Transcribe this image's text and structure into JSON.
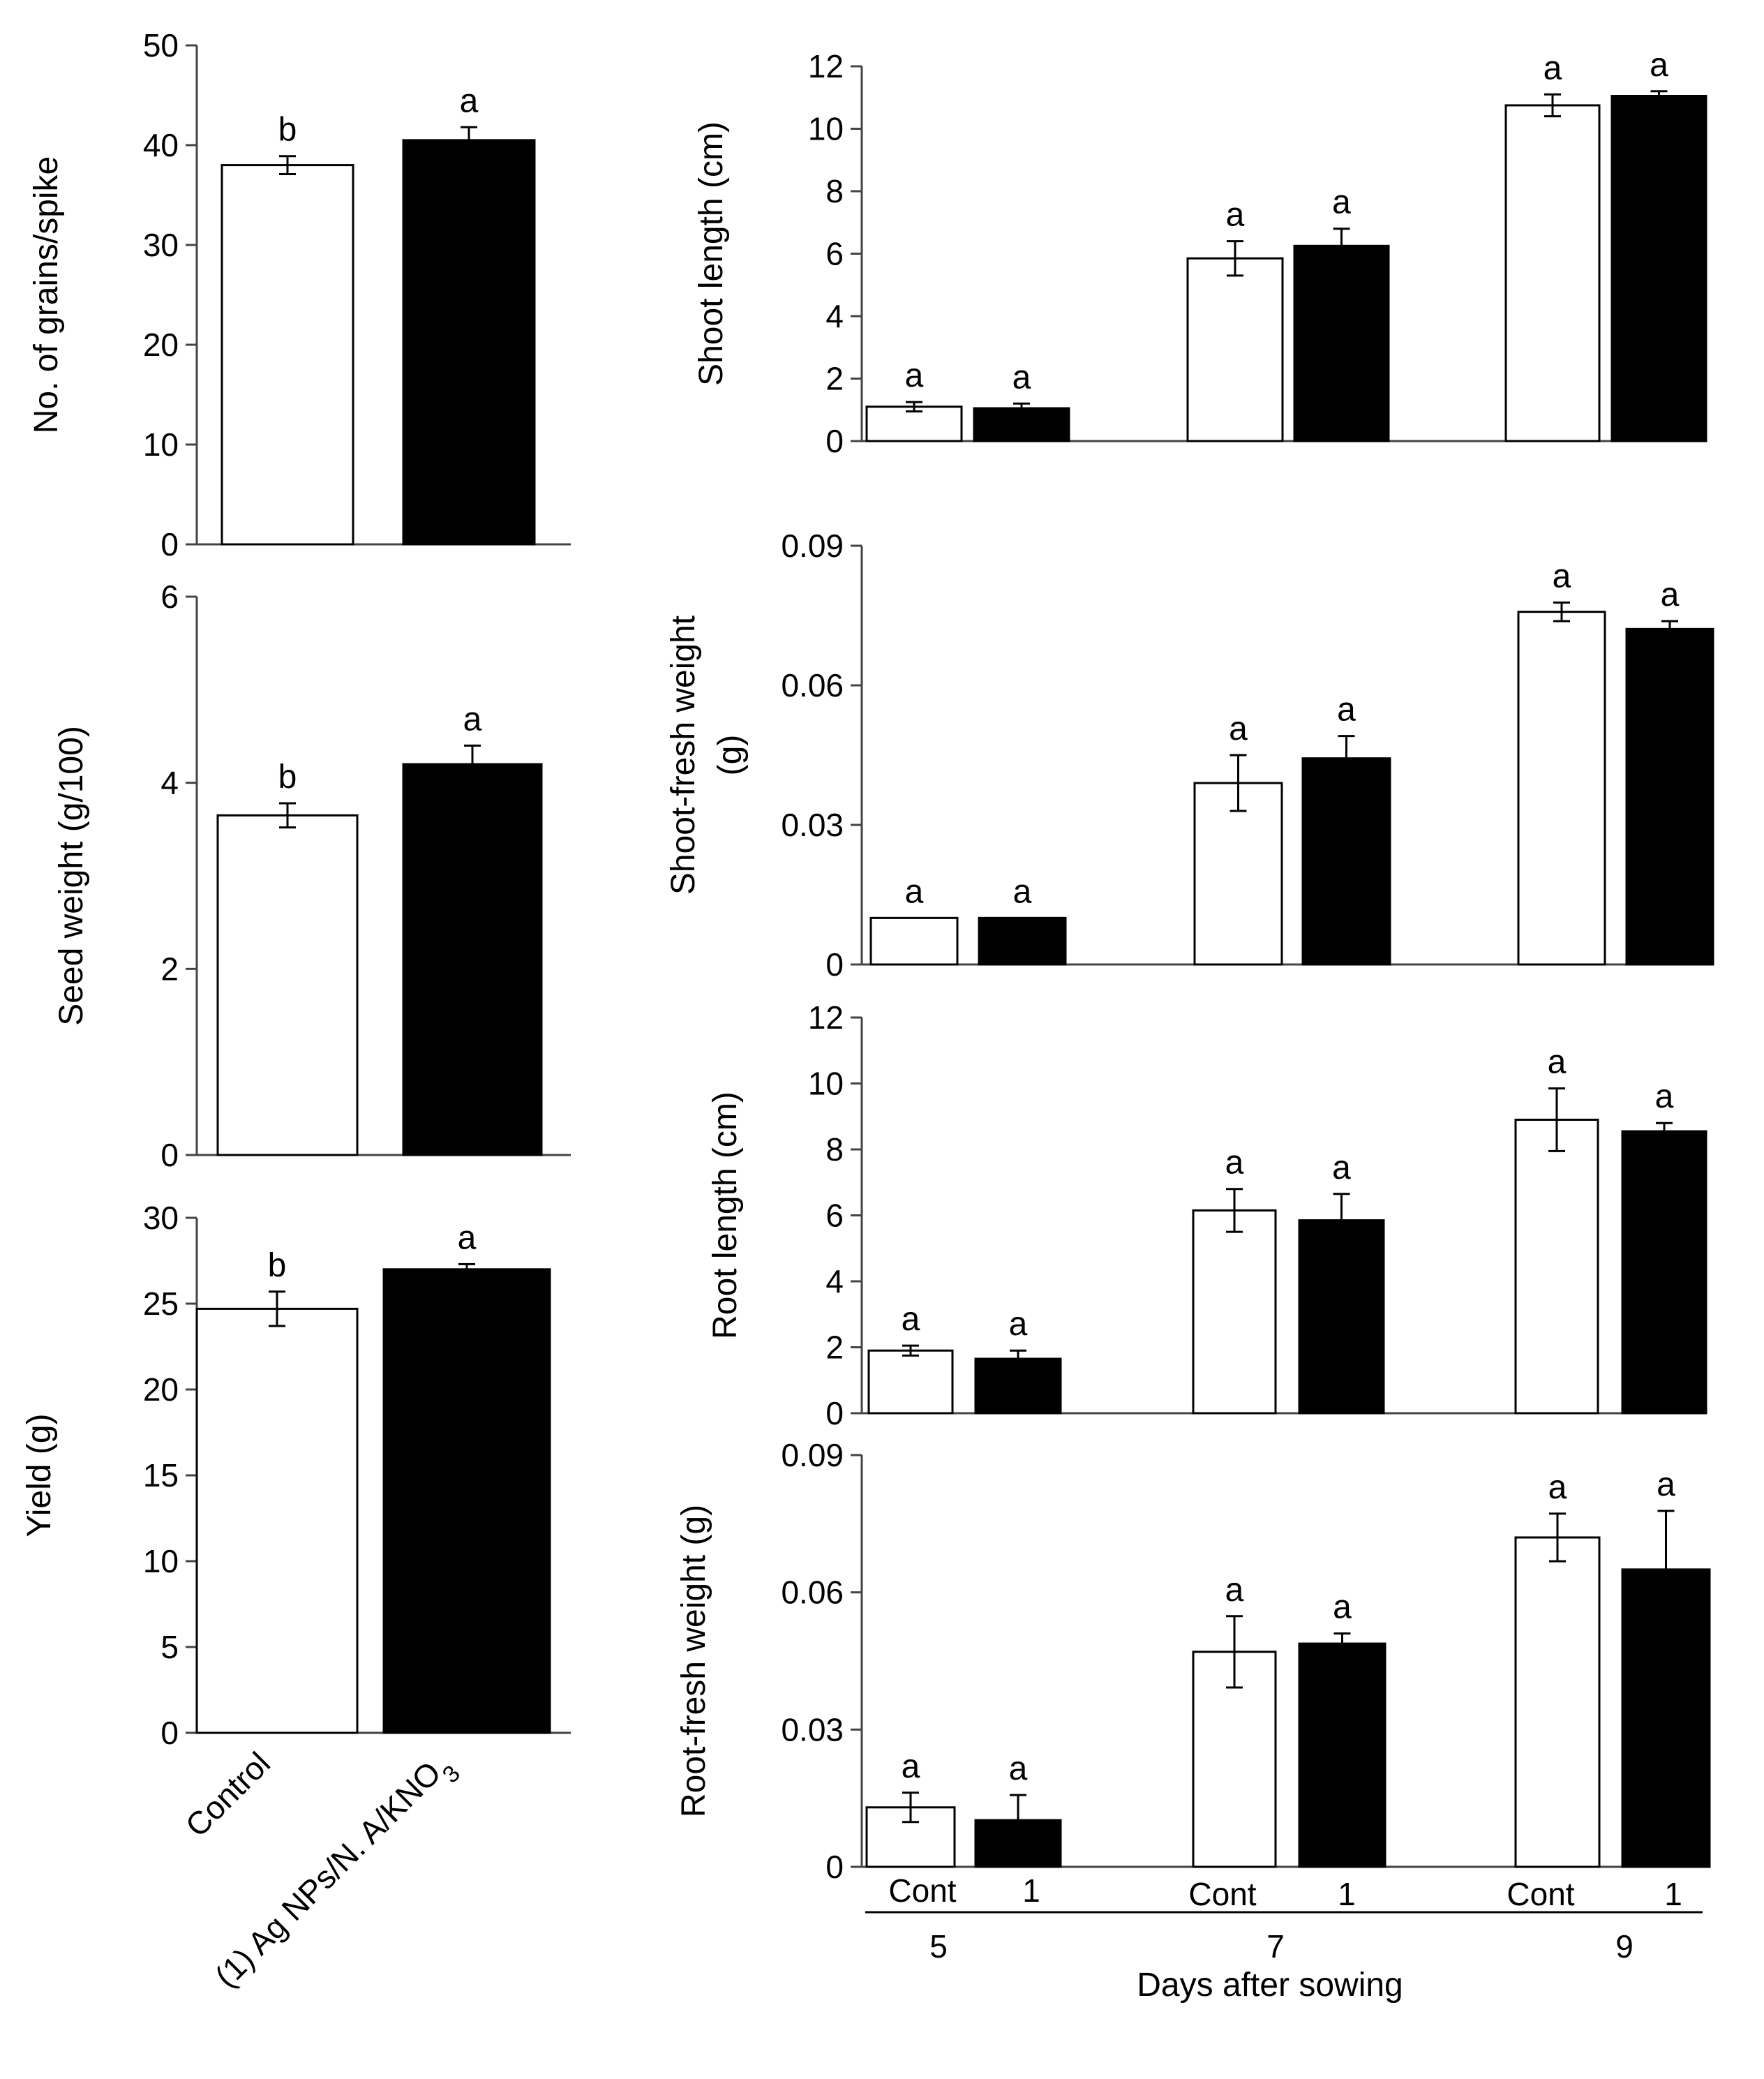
{
  "colors": {
    "control": "#ffffff",
    "treatment": "#000000",
    "outline": "#000000"
  },
  "left_categories": {
    "control": "Control",
    "treatment_prefix": "(1) Ag NPs/N. A/KNO",
    "treatment_subscript": "3"
  },
  "bottom_axis": {
    "group_labels": [
      "Cont",
      "1"
    ],
    "day_groups": [
      "5",
      "7",
      "9"
    ],
    "xlabel": "Days after sowing"
  },
  "chart_data": [
    {
      "id": "grains",
      "type": "bar",
      "ylabel": "No. of grains/spike",
      "ylim": [
        0,
        50
      ],
      "yticks": [
        0,
        10,
        20,
        30,
        40,
        50
      ],
      "ytick_labels": [
        "0",
        "10",
        "20",
        "30",
        "40",
        "50"
      ],
      "categories": [
        "Control",
        "(1) Ag NPs/N. A/KNO3"
      ],
      "values": [
        38,
        40.5
      ],
      "errors": [
        0.9,
        1.3
      ],
      "letters": [
        "b",
        "a"
      ]
    },
    {
      "id": "seed",
      "type": "bar",
      "ylabel": "Seed weight (g/100)",
      "ylim": [
        0,
        6
      ],
      "yticks": [
        0,
        2,
        4,
        6
      ],
      "ytick_labels": [
        "0",
        "2",
        "4",
        "6"
      ],
      "categories": [
        "Control",
        "(1) Ag NPs/N. A/KNO3"
      ],
      "values": [
        3.65,
        4.2
      ],
      "errors": [
        0.13,
        0.2
      ],
      "letters": [
        "b",
        "a"
      ]
    },
    {
      "id": "yield",
      "type": "bar",
      "ylabel": "Yield (g)",
      "ylim": [
        0,
        30
      ],
      "yticks": [
        0,
        5,
        10,
        15,
        20,
        25,
        30
      ],
      "ytick_labels": [
        "0",
        "5",
        "10",
        "15",
        "20",
        "25",
        "30"
      ],
      "categories": [
        "Control",
        "(1) Ag NPs/N. A/KNO3"
      ],
      "values": [
        24.7,
        27
      ],
      "errors": [
        1.0,
        0.3
      ],
      "letters": [
        "b",
        "a"
      ]
    },
    {
      "id": "shoot_length",
      "type": "bar",
      "ylabel": "Shoot length (cm)",
      "ylim": [
        0,
        12
      ],
      "yticks": [
        0,
        2,
        4,
        6,
        8,
        10,
        12
      ],
      "ytick_labels": [
        "0",
        "2",
        "4",
        "6",
        "8",
        "10",
        "12"
      ],
      "categories": [
        "5",
        "7",
        "9"
      ],
      "series": [
        {
          "name": "Cont",
          "values": [
            1.1,
            5.85,
            10.75
          ],
          "errors": [
            0.15,
            0.55,
            0.35
          ],
          "letters": [
            "a",
            "a",
            "a"
          ]
        },
        {
          "name": "1",
          "values": [
            1.05,
            6.25,
            11.05
          ],
          "errors": [
            0.15,
            0.55,
            0.15
          ],
          "letters": [
            "a",
            "a",
            "a"
          ]
        }
      ]
    },
    {
      "id": "shoot_fresh",
      "type": "bar",
      "ylabel": "Shoot-fresh weight (g)",
      "ylabel_lines": [
        "Shoot-fresh weight",
        "(g)"
      ],
      "ylim": [
        0,
        0.09
      ],
      "yticks": [
        0,
        0.03,
        0.06,
        0.09
      ],
      "ytick_labels": [
        "0",
        "0.03",
        "0.06",
        "0.09"
      ],
      "categories": [
        "5",
        "7",
        "9"
      ],
      "series": [
        {
          "name": "Cont",
          "values": [
            0.01,
            0.039,
            0.0758
          ],
          "errors": [
            0,
            0.006,
            0.002
          ],
          "letters": [
            "a",
            "a",
            "a"
          ]
        },
        {
          "name": "1",
          "values": [
            0.01,
            0.0443,
            0.0721
          ],
          "errors": [
            0,
            0.0048,
            0.0017
          ],
          "letters": [
            "a",
            "a",
            "a"
          ]
        }
      ]
    },
    {
      "id": "root_length",
      "type": "bar",
      "ylabel": "Root length (cm)",
      "ylim": [
        0,
        12
      ],
      "yticks": [
        0,
        2,
        4,
        6,
        8,
        10,
        12
      ],
      "ytick_labels": [
        "0",
        "2",
        "4",
        "6",
        "8",
        "10",
        "12"
      ],
      "categories": [
        "5",
        "7",
        "9"
      ],
      "series": [
        {
          "name": "Cont",
          "values": [
            1.9,
            6.15,
            8.9
          ],
          "errors": [
            0.15,
            0.65,
            0.95
          ],
          "letters": [
            "a",
            "a",
            "a"
          ]
        },
        {
          "name": "1",
          "values": [
            1.65,
            5.85,
            8.55
          ],
          "errors": [
            0.25,
            0.8,
            0.25
          ],
          "letters": [
            "a",
            "a",
            "a"
          ]
        }
      ]
    },
    {
      "id": "root_fresh",
      "type": "bar",
      "ylabel": "Root-fresh weight (g)",
      "ylim": [
        0,
        0.09
      ],
      "yticks": [
        0,
        0.03,
        0.06,
        0.09
      ],
      "ytick_labels": [
        "0",
        "0.03",
        "0.06",
        "0.09"
      ],
      "categories": [
        "5",
        "7",
        "9"
      ],
      "series": [
        {
          "name": "Cont",
          "values": [
            0.013,
            0.047,
            0.072
          ],
          "errors": [
            0.0032,
            0.0078,
            0.0052
          ],
          "letters": [
            "a",
            "a",
            "a"
          ]
        },
        {
          "name": "1",
          "values": [
            0.0102,
            0.0488,
            0.065
          ],
          "errors": [
            0.0055,
            0.0022,
            0.0128
          ],
          "letters": [
            "a",
            "a",
            "a"
          ]
        }
      ]
    }
  ]
}
